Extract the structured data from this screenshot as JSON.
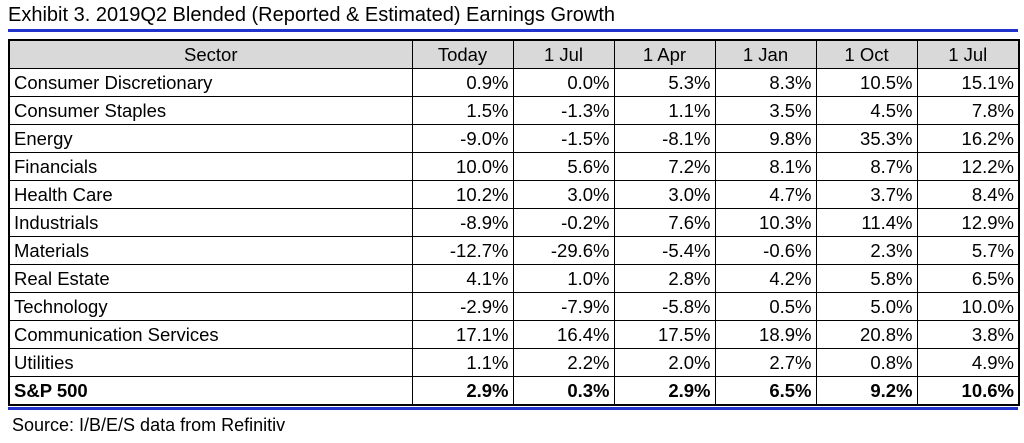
{
  "title": "Exhibit 3.  2019Q2 Blended (Reported & Estimated) Earnings Growth",
  "columns": [
    "Sector",
    "Today",
    "1 Jul",
    "1 Apr",
    "1 Jan",
    "1 Oct",
    "1 Jul"
  ],
  "rows": [
    {
      "sector": "Consumer Discretionary",
      "values": [
        "0.9%",
        "0.0%",
        "5.3%",
        "8.3%",
        "10.5%",
        "15.1%"
      ]
    },
    {
      "sector": "Consumer Staples",
      "values": [
        "1.5%",
        "-1.3%",
        "1.1%",
        "3.5%",
        "4.5%",
        "7.8%"
      ]
    },
    {
      "sector": "Energy",
      "values": [
        "-9.0%",
        "-1.5%",
        "-8.1%",
        "9.8%",
        "35.3%",
        "16.2%"
      ]
    },
    {
      "sector": "Financials",
      "values": [
        "10.0%",
        "5.6%",
        "7.2%",
        "8.1%",
        "8.7%",
        "12.2%"
      ]
    },
    {
      "sector": "Health Care",
      "values": [
        "10.2%",
        "3.0%",
        "3.0%",
        "4.7%",
        "3.7%",
        "8.4%"
      ]
    },
    {
      "sector": "Industrials",
      "values": [
        "-8.9%",
        "-0.2%",
        "7.6%",
        "10.3%",
        "11.4%",
        "12.9%"
      ]
    },
    {
      "sector": "Materials",
      "values": [
        "-12.7%",
        "-29.6%",
        "-5.4%",
        "-0.6%",
        "2.3%",
        "5.7%"
      ]
    },
    {
      "sector": "Real Estate",
      "values": [
        "4.1%",
        "1.0%",
        "2.8%",
        "4.2%",
        "5.8%",
        "6.5%"
      ]
    },
    {
      "sector": "Technology",
      "values": [
        "-2.9%",
        "-7.9%",
        "-5.8%",
        "0.5%",
        "5.0%",
        "10.0%"
      ]
    },
    {
      "sector": "Communication Services",
      "values": [
        "17.1%",
        "16.4%",
        "17.5%",
        "18.9%",
        "20.8%",
        "3.8%"
      ]
    },
    {
      "sector": "Utilities",
      "values": [
        "1.1%",
        "2.2%",
        "2.0%",
        "2.7%",
        "0.8%",
        "4.9%"
      ]
    },
    {
      "sector": "S&P 500",
      "values": [
        "2.9%",
        "0.3%",
        "2.9%",
        "6.5%",
        "9.2%",
        "10.6%"
      ]
    }
  ],
  "source": "Source: I/B/E/S data from Refinitiv",
  "colors": {
    "rule": "#2233cc",
    "header_bg": "#d9d9d9"
  }
}
